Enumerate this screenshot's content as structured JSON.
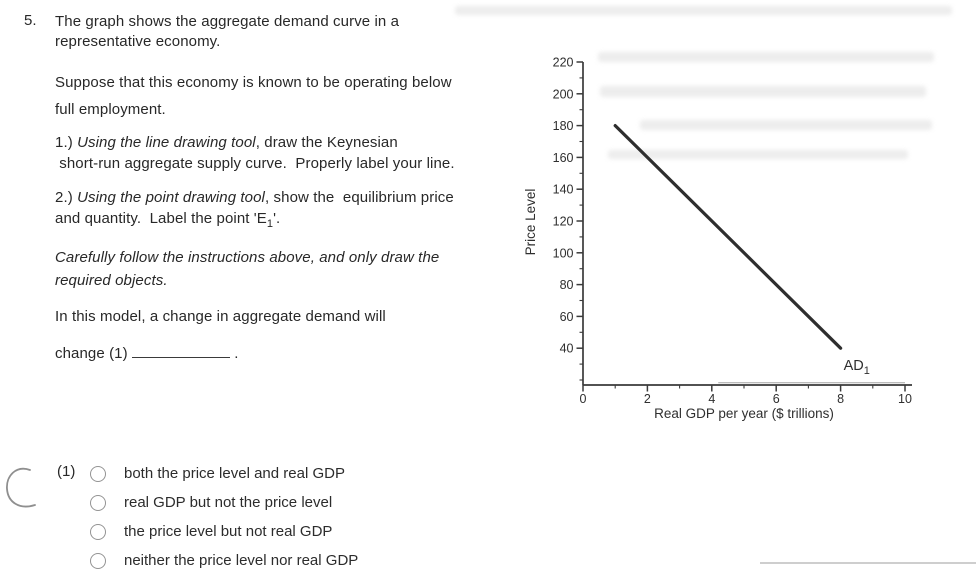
{
  "question": {
    "number": "5.",
    "paragraphs": [
      {
        "segments": [
          {
            "t": "The graph shows the aggregate demand curve in a\nrepresentative economy."
          }
        ]
      },
      {
        "segments": [
          {
            "t": "Suppose that this economy is known to be operating below\nfull employment."
          }
        ]
      },
      {
        "segments": [
          {
            "t": "1.) "
          },
          {
            "t": "Using the line drawing tool",
            "i": true
          },
          {
            "t": ", draw the Keynesian\n short-run aggregate supply curve.  Properly label your line."
          }
        ]
      },
      {
        "segments": [
          {
            "t": "2.) "
          },
          {
            "t": "Using the point drawing tool",
            "i": true
          },
          {
            "t": ", show the  equilibrium price\nand quantity.  Label the point 'E"
          },
          {
            "t": "1",
            "sub": true
          },
          {
            "t": "'."
          }
        ]
      },
      {
        "segments": [
          {
            "t": "Carefully follow the instructions above, and only draw the\nrequired objects.",
            "i": true
          }
        ]
      },
      {
        "segments": [
          {
            "t": "In this model, a change in aggregate demand will"
          }
        ]
      },
      {
        "segments": [
          {
            "t": "change (1) "
          },
          {
            "blank": true
          },
          {
            "t": " ."
          }
        ]
      }
    ]
  },
  "chart_data": {
    "type": "line",
    "title": "",
    "xlabel": "Real GDP per year ($ trillions)",
    "ylabel": "Price Level",
    "xlim": [
      0,
      10
    ],
    "ylim": [
      20,
      220
    ],
    "xticks": [
      0,
      2,
      4,
      6,
      8,
      10
    ],
    "yticks": [
      40,
      60,
      80,
      100,
      120,
      140,
      160,
      180,
      200,
      220
    ],
    "x_minor_step": 1,
    "y_minor_step": 10,
    "grid": false,
    "axis_color": "#3a3a3a",
    "series": [
      {
        "name": "AD1",
        "label": "AD",
        "label_sub": "1",
        "color": "#2e2e2e",
        "points": [
          [
            1,
            180
          ],
          [
            8,
            40
          ]
        ]
      }
    ]
  },
  "answer": {
    "marker": "(1)",
    "options": [
      "both the price level and real GDP",
      "real GDP but not the price level",
      "the price level but not real GDP",
      "neither the price level nor real GDP"
    ]
  },
  "artifacts": {
    "handwritten_mark": "C"
  }
}
